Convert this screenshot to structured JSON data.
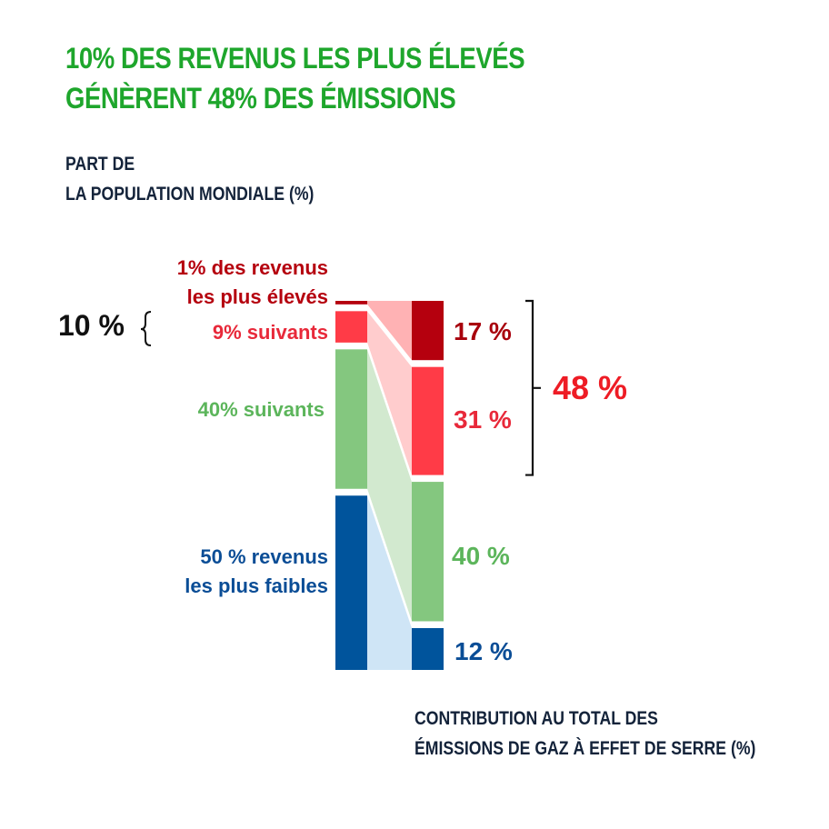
{
  "chart_data": {
    "type": "bar",
    "subtype": "stacked-100-comparison",
    "title": [
      "10% DES REVENUS LES PLUS ÉLEVÉS",
      "GÉNÈRENT 48% DES ÉMISSIONS"
    ],
    "left_axis_title": [
      "PART DE",
      "LA POPULATION MONDIALE (%)"
    ],
    "right_axis_title": [
      "CONTRIBUTION AU TOTAL DES",
      "ÉMISSIONS DE GAZ À EFFET DE SERRE (%)"
    ],
    "categories": [
      "1% des revenus les plus élevés",
      "9% suivants",
      "40% suivants",
      "50 % revenus les plus faibles"
    ],
    "series": [
      {
        "name": "Part de la population mondiale",
        "values": [
          1,
          9,
          40,
          50
        ]
      },
      {
        "name": "Contribution aux émissions",
        "values": [
          17,
          31,
          40,
          12
        ]
      }
    ],
    "colors": {
      "bar": [
        "#b5000e",
        "#ff3b47",
        "#84c77f",
        "#00549c"
      ],
      "flow": [
        "#ffb2b4",
        "#ffcccd",
        "#d2e9cf",
        "#cfe5f6"
      ]
    },
    "labels_left": [
      {
        "lines": [
          "1% des revenus",
          "les plus élevés"
        ],
        "color": "#b5000e"
      },
      {
        "lines": [
          "9% suivants"
        ],
        "color": "#e8293a"
      },
      {
        "lines": [
          "40% suivants"
        ],
        "color": "#5cb55b"
      },
      {
        "lines": [
          "50 % revenus",
          "les plus faibles"
        ],
        "color": "#0a4d96"
      }
    ],
    "labels_right": [
      {
        "text": "17 %",
        "color": "#a8000c"
      },
      {
        "text": "31 %",
        "color": "#e8293a"
      },
      {
        "text": "40 %",
        "color": "#5cb55b"
      },
      {
        "text": "12 %",
        "color": "#0a4d96"
      }
    ],
    "bracket_left": {
      "text": "10 %",
      "color": "#111111"
    },
    "bracket_right": {
      "text": "48 %",
      "color": "#ee1c25"
    },
    "ylim": [
      0,
      100
    ]
  }
}
